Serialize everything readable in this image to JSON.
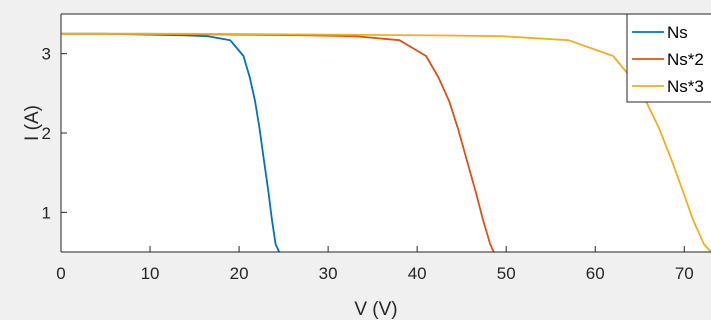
{
  "chart_data": {
    "type": "line",
    "xlabel": "V (V)",
    "ylabel": "I (A)",
    "xlim": [
      0,
      73
    ],
    "ylim": [
      0.5,
      3.5
    ],
    "xticks": [
      0,
      10,
      20,
      30,
      40,
      50,
      60,
      70
    ],
    "yticks": [
      1,
      2,
      3
    ],
    "grid": false,
    "legend_position": "top-right",
    "series": [
      {
        "name": "Ns",
        "color": "#0072bd",
        "x": [
          0,
          5,
          10,
          14,
          16.5,
          19,
          20.5,
          21.2,
          21.8,
          22.3,
          22.8,
          23.3,
          23.7,
          24.1,
          24.5
        ],
        "y": [
          3.25,
          3.25,
          3.24,
          3.23,
          3.22,
          3.17,
          2.97,
          2.7,
          2.4,
          2.05,
          1.65,
          1.25,
          0.9,
          0.6,
          0.5
        ]
      },
      {
        "name": "Ns*2",
        "color": "#d95319",
        "x": [
          0,
          10,
          20,
          28,
          33,
          38,
          41,
          42.4,
          43.6,
          44.6,
          45.6,
          46.6,
          47.4,
          48.2,
          48.6
        ],
        "y": [
          3.25,
          3.25,
          3.24,
          3.23,
          3.22,
          3.17,
          2.97,
          2.7,
          2.4,
          2.05,
          1.65,
          1.25,
          0.9,
          0.6,
          0.5
        ]
      },
      {
        "name": "Ns*3",
        "color": "#edb120",
        "x": [
          0,
          15,
          30,
          42,
          49.5,
          57,
          62,
          64,
          65.7,
          67.2,
          68.6,
          69.9,
          71,
          72.2,
          73
        ],
        "y": [
          3.25,
          3.25,
          3.24,
          3.23,
          3.22,
          3.17,
          2.97,
          2.7,
          2.4,
          2.05,
          1.65,
          1.25,
          0.9,
          0.6,
          0.5
        ]
      }
    ]
  }
}
